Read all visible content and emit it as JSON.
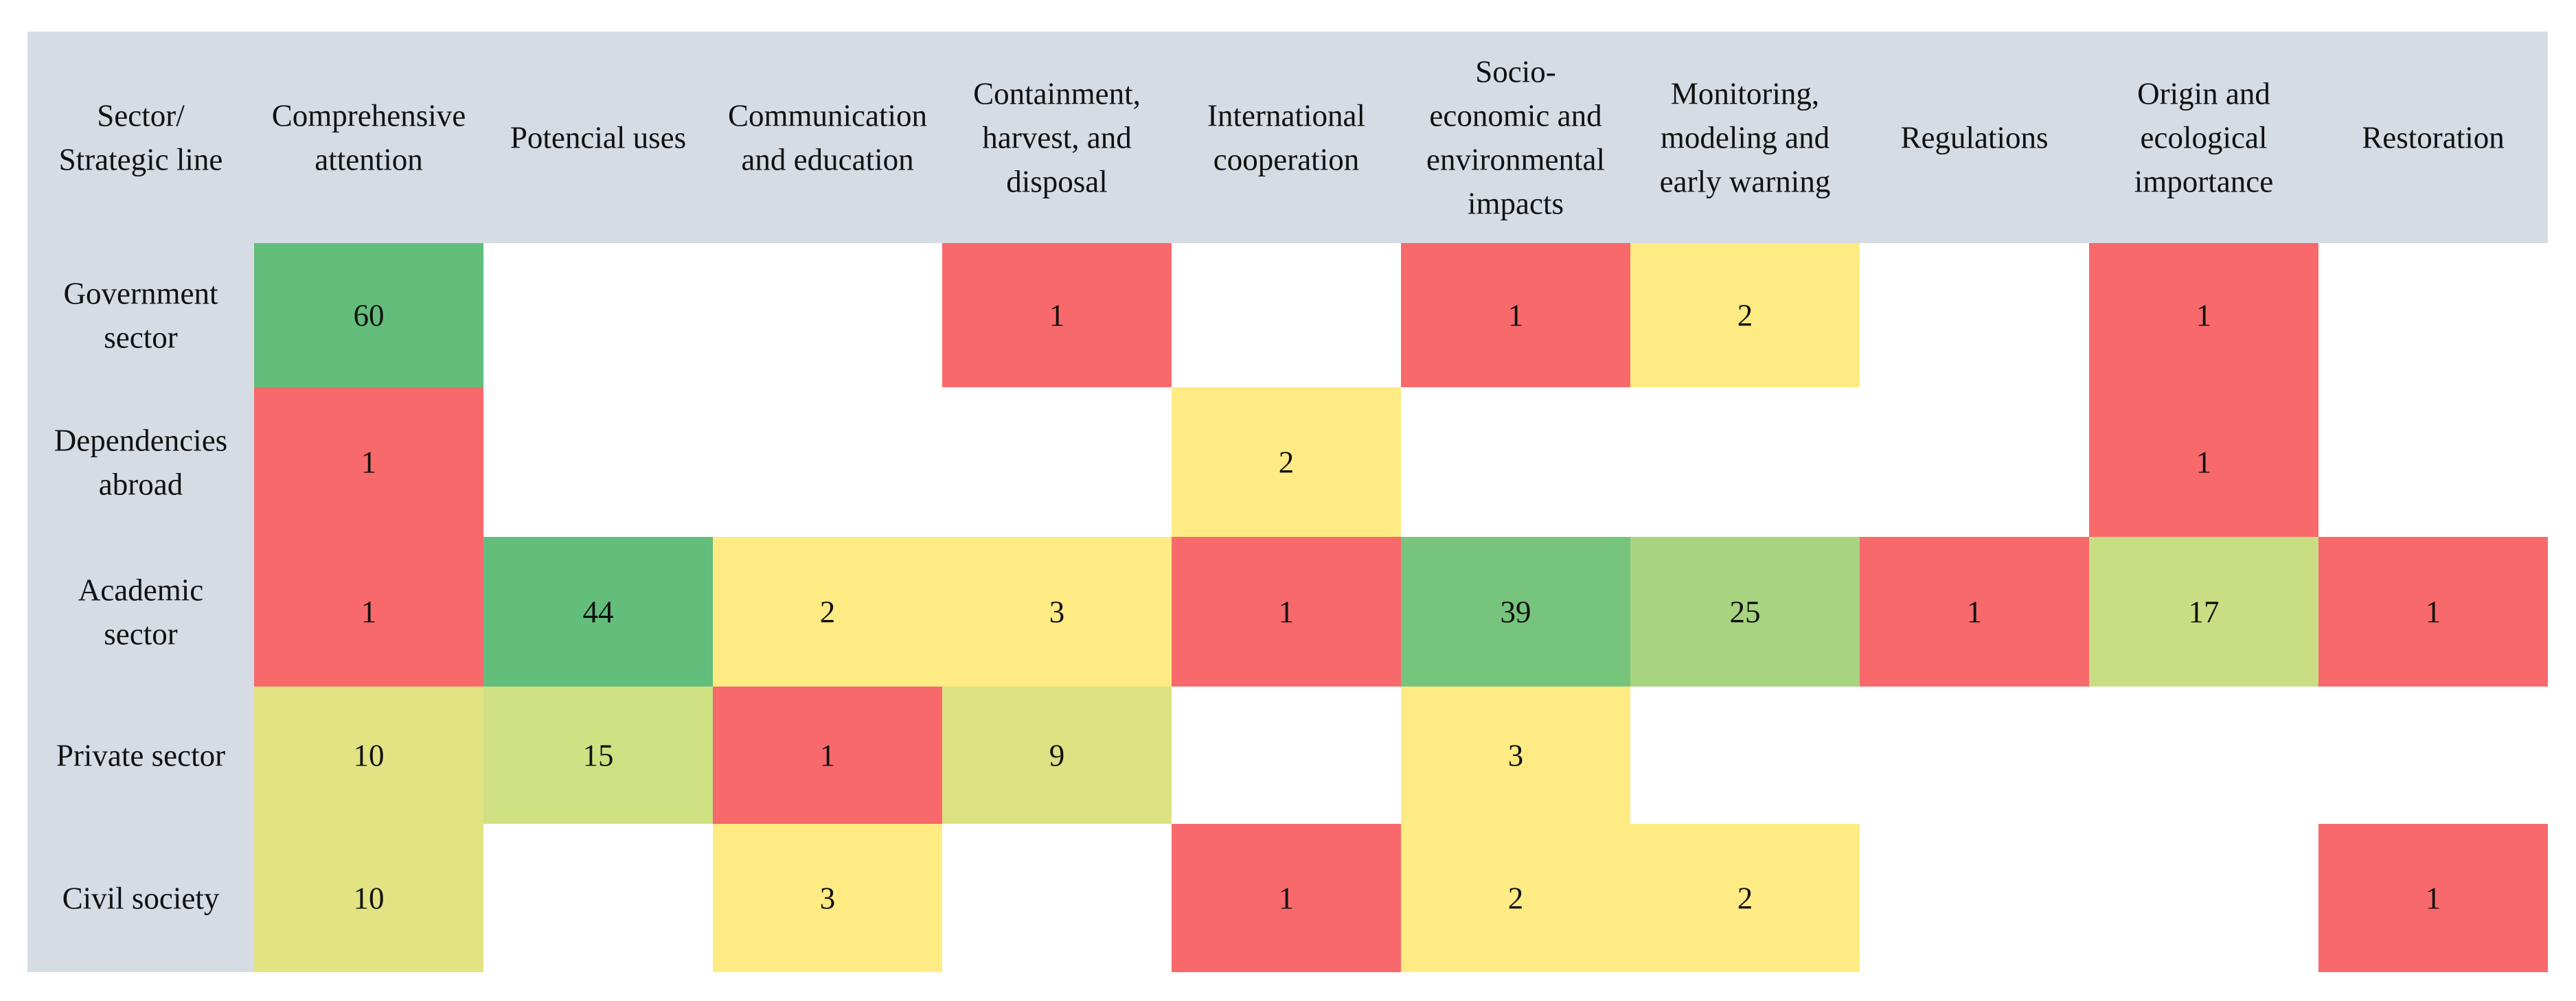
{
  "chart_data": {
    "type": "heatmap",
    "corner_label": [
      "Sector/",
      "Strategic line"
    ],
    "columns": [
      {
        "key": "comprehensive-attention",
        "label": [
          "Comprehensive",
          "attention"
        ]
      },
      {
        "key": "potencial-uses",
        "label": [
          "Potencial uses"
        ]
      },
      {
        "key": "communication-education",
        "label": [
          "Communication",
          "and education"
        ]
      },
      {
        "key": "containment-harvest-disposal",
        "label": [
          "Containment,",
          "harvest, and",
          "disposal"
        ]
      },
      {
        "key": "international-cooperation",
        "label": [
          "International",
          "cooperation"
        ]
      },
      {
        "key": "socioeconomic-environmental-impacts",
        "label": [
          "Socio-",
          "economic and",
          "environmental",
          "impacts"
        ]
      },
      {
        "key": "monitoring-modeling-early-warning",
        "label": [
          "Monitoring,",
          "modeling and",
          "early warning"
        ]
      },
      {
        "key": "regulations",
        "label": [
          "Regulations"
        ]
      },
      {
        "key": "origin-ecological-importance",
        "label": [
          "Origin and",
          "ecological",
          "importance"
        ]
      },
      {
        "key": "restoration",
        "label": [
          "Restoration"
        ]
      }
    ],
    "rows": [
      {
        "key": "government-sector",
        "label": [
          "Government",
          "sector"
        ],
        "values": [
          60,
          null,
          null,
          1,
          null,
          1,
          2,
          null,
          1,
          null
        ]
      },
      {
        "key": "dependencies-abroad",
        "label": [
          "Dependencies",
          "abroad"
        ],
        "values": [
          1,
          null,
          null,
          null,
          2,
          null,
          null,
          null,
          1,
          null
        ]
      },
      {
        "key": "academic-sector",
        "label": [
          "Academic",
          "sector"
        ],
        "values": [
          1,
          44,
          2,
          3,
          1,
          39,
          25,
          1,
          17,
          1
        ]
      },
      {
        "key": "private-sector",
        "label": [
          "Private sector"
        ],
        "values": [
          10,
          15,
          1,
          9,
          null,
          3,
          null,
          null,
          null,
          null
        ]
      },
      {
        "key": "civil-society",
        "label": [
          "Civil society"
        ],
        "values": [
          10,
          null,
          3,
          null,
          1,
          2,
          2,
          null,
          null,
          1
        ]
      }
    ],
    "header_background": "#d6dce4",
    "empty_color": "#ffffff",
    "color_scale": {
      "type": "red-yellow-green",
      "low": "#f8696b",
      "mid": "#ffeb84",
      "high": "#63be7b"
    },
    "cell_colors": [
      [
        "#63be7b",
        null,
        null,
        "#f8696b",
        null,
        "#f8696b",
        "#ffeb84",
        null,
        "#f8696b",
        null
      ],
      [
        "#f8696b",
        null,
        null,
        null,
        "#ffeb84",
        null,
        null,
        null,
        "#f8696b",
        null
      ],
      [
        "#f8696b",
        "#63be7b",
        "#ffeb84",
        "#ffeb84",
        "#f8696b",
        "#77c47d",
        "#a8d481",
        "#f8696b",
        "#c9de83",
        "#f8696b"
      ],
      [
        "#e3e383",
        "#cfe183",
        "#f8696b",
        "#dde282",
        null,
        "#ffeb84",
        null,
        null,
        null,
        null
      ],
      [
        "#e3e383",
        null,
        "#ffeb84",
        null,
        "#f8696b",
        "#ffeb84",
        "#ffeb84",
        null,
        null,
        "#f8696b"
      ]
    ]
  }
}
